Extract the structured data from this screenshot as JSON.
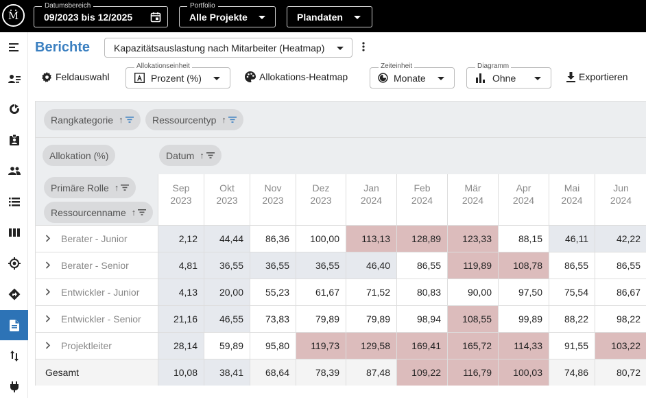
{
  "topbar": {
    "date_label": "Datumsbereich",
    "date_value": "09/2023 bis 12/2025",
    "portfolio_label": "Portfolio",
    "portfolio_value": "Alle Projekte",
    "plan_value": "Plandaten"
  },
  "sidebar": {
    "items": [
      {
        "icon": "menu-icon"
      },
      {
        "icon": "person-list-icon"
      },
      {
        "icon": "refresh-circle-icon"
      },
      {
        "icon": "badge-icon"
      },
      {
        "icon": "people-icon"
      },
      {
        "icon": "list-icon"
      },
      {
        "icon": "columns-icon"
      },
      {
        "icon": "target-icon"
      },
      {
        "icon": "direction-icon"
      },
      {
        "icon": "report-icon",
        "active": true
      },
      {
        "icon": "sort-arrows-icon"
      },
      {
        "icon": "plug-icon"
      }
    ]
  },
  "header": {
    "title": "Berichte",
    "report_select": "Kapazitätsauslastung nach Mitarbeiter (Heatmap)"
  },
  "toolbar": {
    "field_selection": "Feldauswahl",
    "allocation_unit_label": "Allokationseinheit",
    "allocation_unit_value": "Prozent (%)",
    "heatmap": "Allokations-Heatmap",
    "time_unit_label": "Zeiteinheit",
    "time_unit_value": "Monate",
    "chart_label": "Diagramm",
    "chart_value": "Ohne",
    "export": "Exportieren"
  },
  "pivot": {
    "filter_chips": [
      "Rangkategorie",
      "Ressourcentyp"
    ],
    "value_chip": "Allokation (%)",
    "column_chip": "Datum",
    "row_chips": [
      "Primäre Rolle",
      "Ressourcenname"
    ],
    "columns": [
      {
        "month": "Sep",
        "year": "2023"
      },
      {
        "month": "Okt",
        "year": "2023"
      },
      {
        "month": "Nov",
        "year": "2023"
      },
      {
        "month": "Dez",
        "year": "2023"
      },
      {
        "month": "Jan",
        "year": "2024"
      },
      {
        "month": "Feb",
        "year": "2024"
      },
      {
        "month": "Mär",
        "year": "2024"
      },
      {
        "month": "Apr",
        "year": "2024"
      },
      {
        "month": "Mai",
        "year": "2024"
      },
      {
        "month": "Jun",
        "year": "2024"
      }
    ],
    "rows": [
      {
        "label": "Berater - Junior",
        "values": [
          "2,12",
          "44,44",
          "86,36",
          "100,00",
          "113,13",
          "128,89",
          "123,33",
          "88,15",
          "46,11",
          "42,22"
        ]
      },
      {
        "label": "Berater - Senior",
        "values": [
          "4,81",
          "36,55",
          "36,55",
          "36,55",
          "46,40",
          "86,55",
          "119,89",
          "108,78",
          "86,55",
          "86,55"
        ]
      },
      {
        "label": "Entwickler - Junior",
        "values": [
          "4,13",
          "20,00",
          "55,23",
          "61,67",
          "71,52",
          "80,83",
          "90,00",
          "97,50",
          "75,54",
          "86,67"
        ]
      },
      {
        "label": "Entwickler - Senior",
        "values": [
          "21,16",
          "46,55",
          "73,83",
          "79,89",
          "79,89",
          "98,94",
          "108,55",
          "99,89",
          "88,22",
          "98,22"
        ]
      },
      {
        "label": "Projektleiter",
        "values": [
          "28,14",
          "59,89",
          "95,80",
          "119,73",
          "129,58",
          "169,41",
          "165,72",
          "114,33",
          "91,55",
          "103,22"
        ]
      }
    ],
    "total": {
      "label": "Gesamt",
      "values": [
        "10,08",
        "38,41",
        "68,64",
        "78,39",
        "87,48",
        "109,22",
        "116,79",
        "100,03",
        "74,86",
        "80,72"
      ]
    },
    "colors": {
      "over": "#dcbcbc",
      "under": "#e6e9ee",
      "normal": "#ffffff"
    }
  }
}
